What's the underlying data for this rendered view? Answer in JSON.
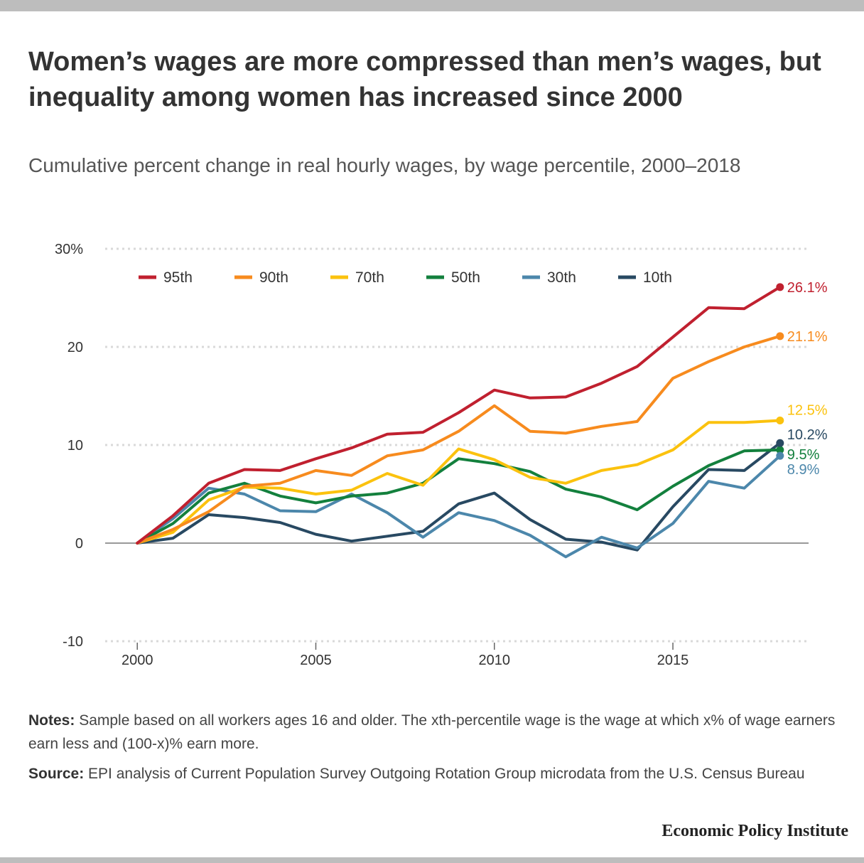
{
  "header": {
    "title": "Women’s wages are more compressed than men’s wages, but inequality among women has increased since 2000",
    "subtitle": "Cumulative percent change in real hourly wages, by wage percentile, 2000–2018"
  },
  "chart_data": {
    "type": "line",
    "x": [
      2000,
      2001,
      2002,
      2003,
      2004,
      2005,
      2006,
      2007,
      2008,
      2009,
      2010,
      2011,
      2012,
      2013,
      2014,
      2015,
      2016,
      2017,
      2018
    ],
    "xticks": [
      2000,
      2005,
      2010,
      2015
    ],
    "xlim": [
      1999.1,
      2018.8
    ],
    "ylim": [
      -10,
      30
    ],
    "yticks": [
      -10,
      0,
      10,
      20,
      30
    ],
    "ytick_labels": [
      "-10",
      "0",
      "10",
      "20",
      "30%"
    ],
    "grid": true,
    "legend_position": "top",
    "series": [
      {
        "name": "95th",
        "color": "#c0202f",
        "end_label": "26.1%",
        "values": [
          0,
          2.8,
          6.1,
          7.5,
          7.4,
          8.6,
          9.7,
          11.1,
          11.3,
          13.3,
          15.6,
          14.8,
          14.9,
          16.3,
          18.0,
          21.0,
          24.0,
          23.9,
          26.1
        ]
      },
      {
        "name": "90th",
        "color": "#f78b1e",
        "end_label": "21.1%",
        "values": [
          0,
          1.4,
          3.2,
          5.8,
          6.1,
          7.4,
          6.9,
          8.9,
          9.5,
          11.4,
          14.0,
          11.4,
          11.2,
          11.9,
          12.4,
          16.8,
          18.5,
          20.0,
          21.1
        ]
      },
      {
        "name": "70th",
        "color": "#fbc20e",
        "end_label": "12.5%",
        "values": [
          0,
          1.1,
          4.4,
          5.7,
          5.6,
          5.0,
          5.4,
          7.1,
          5.9,
          9.6,
          8.5,
          6.7,
          6.1,
          7.4,
          8.0,
          9.5,
          12.3,
          12.3,
          12.5
        ]
      },
      {
        "name": "50th",
        "color": "#13803d",
        "end_label": "9.5%",
        "values": [
          0,
          2.0,
          5.1,
          6.1,
          4.8,
          4.1,
          4.8,
          5.1,
          6.1,
          8.6,
          8.1,
          7.3,
          5.5,
          4.7,
          3.4,
          5.8,
          7.9,
          9.4,
          9.5
        ]
      },
      {
        "name": "30th",
        "color": "#4c87ab",
        "end_label": "8.9%",
        "values": [
          0,
          2.5,
          5.6,
          5.0,
          3.3,
          3.2,
          5.0,
          3.1,
          0.6,
          3.1,
          2.3,
          0.8,
          -1.4,
          0.6,
          -0.5,
          2.0,
          6.3,
          5.6,
          8.9
        ]
      },
      {
        "name": "10th",
        "color": "#284962",
        "end_label": "10.2%",
        "values": [
          0,
          0.5,
          2.9,
          2.6,
          2.1,
          0.9,
          0.2,
          0.7,
          1.2,
          4.0,
          5.1,
          2.4,
          0.4,
          0.1,
          -0.7,
          3.7,
          7.5,
          7.4,
          10.2
        ]
      }
    ]
  },
  "notes": {
    "lead": "Notes:",
    "text": "Sample based on all workers ages 16 and older. The xth-percentile wage is the wage at which x% of wage earners earn less and (100-x)% earn more."
  },
  "source": {
    "lead": "Source:",
    "text": "EPI analysis of Current Population Survey Outgoing Rotation Group microdata from the U.S. Census Bureau"
  },
  "footer": {
    "brand": "Economic Policy Institute"
  }
}
